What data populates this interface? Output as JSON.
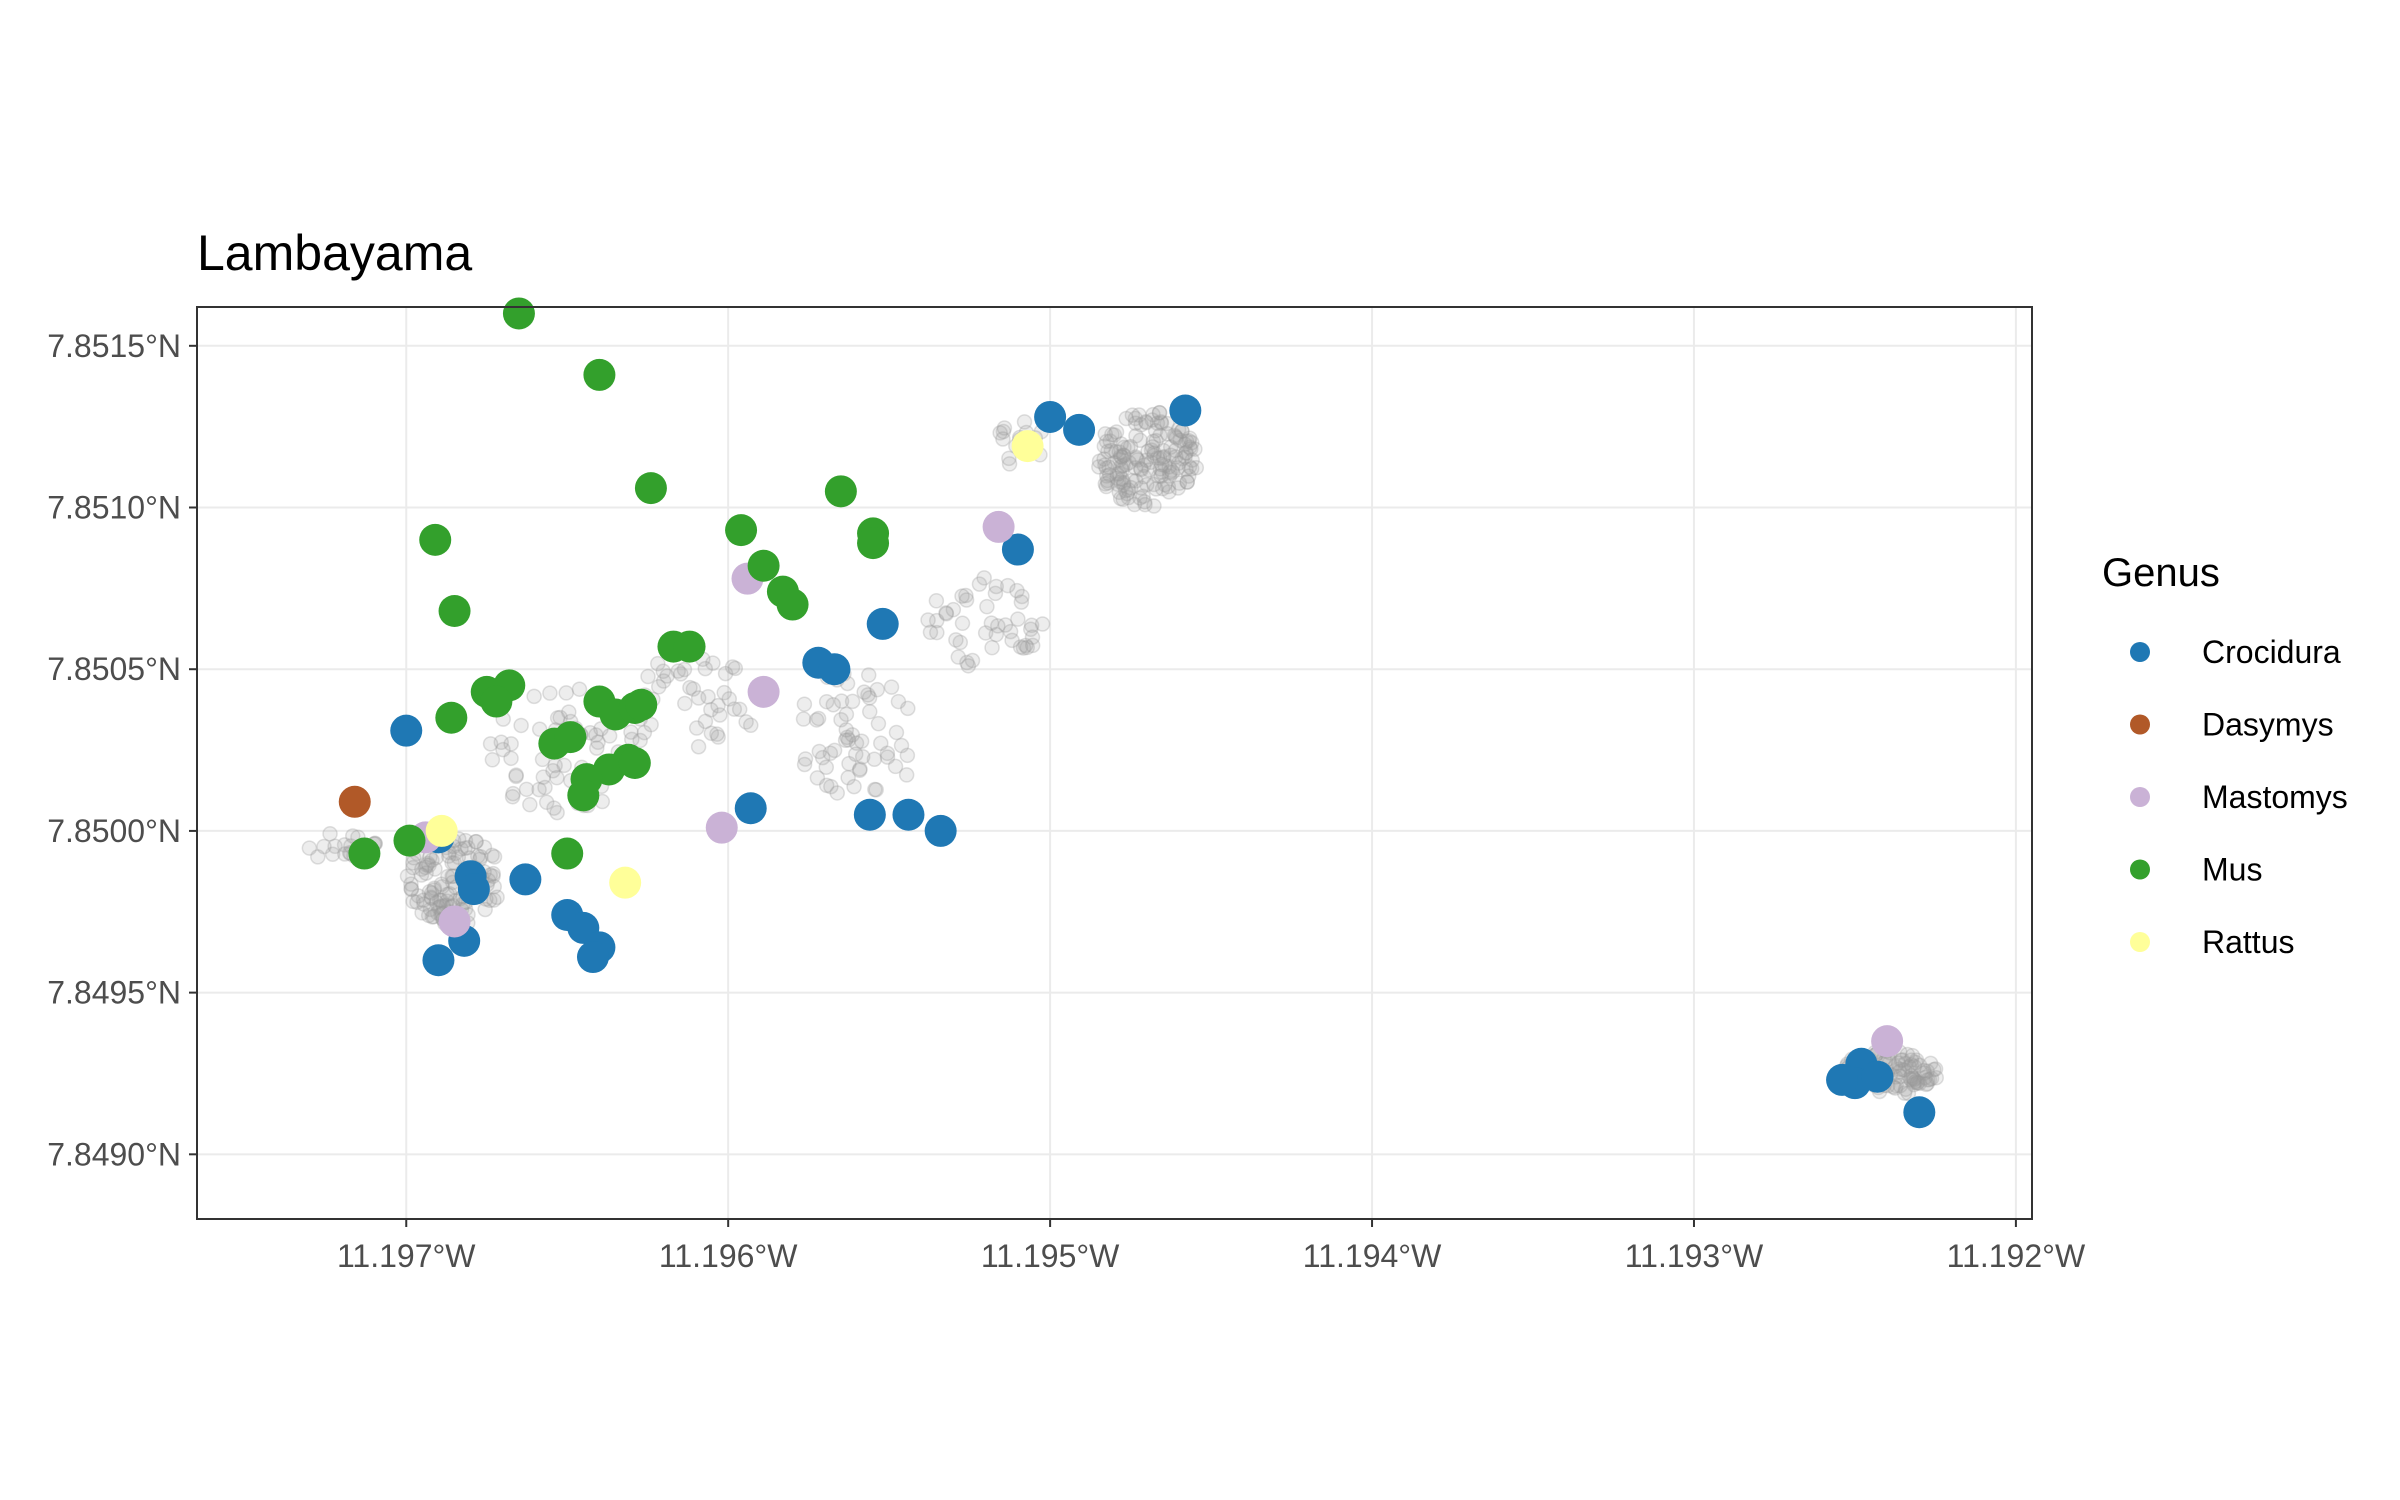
{
  "chart_data": {
    "type": "scatter",
    "title": "Lambayama",
    "xlabel": "",
    "ylabel": "",
    "xlim": [
      -11.19765,
      -11.19195
    ],
    "ylim": [
      7.8488,
      7.85162
    ],
    "x_ticks": [
      {
        "value": -11.197,
        "label": "11.197°W"
      },
      {
        "value": -11.196,
        "label": "11.196°W"
      },
      {
        "value": -11.195,
        "label": "11.195°W"
      },
      {
        "value": -11.194,
        "label": "11.194°W"
      },
      {
        "value": -11.193,
        "label": "11.193°W"
      },
      {
        "value": -11.192,
        "label": "11.192°W"
      }
    ],
    "y_ticks": [
      {
        "value": 7.849,
        "label": "7.8490°N"
      },
      {
        "value": 7.8495,
        "label": "7.8495°N"
      },
      {
        "value": 7.85,
        "label": "7.8500°N"
      },
      {
        "value": 7.8505,
        "label": "7.8505°N"
      },
      {
        "value": 7.851,
        "label": "7.8510°N"
      },
      {
        "value": 7.8515,
        "label": "7.8515°N"
      }
    ],
    "grid": true,
    "legend": {
      "title": "Genus",
      "position": "right"
    },
    "background_points": {
      "color": "#999999",
      "clusters": [
        {
          "center": [
            -11.19685,
            7.84985
          ],
          "spread": [
            0.00015,
            0.00014
          ],
          "count": 120
        },
        {
          "center": [
            -11.1965,
            7.85025
          ],
          "spread": [
            0.00025,
            0.0002
          ],
          "count": 70
        },
        {
          "center": [
            -11.1961,
            7.8504
          ],
          "spread": [
            0.0002,
            0.00015
          ],
          "count": 40
        },
        {
          "center": [
            -11.1956,
            7.8503
          ],
          "spread": [
            0.0002,
            0.0002
          ],
          "count": 60
        },
        {
          "center": [
            -11.1952,
            7.85065
          ],
          "spread": [
            0.00018,
            0.00015
          ],
          "count": 45
        },
        {
          "center": [
            -11.1947,
            7.85115
          ],
          "spread": [
            0.00016,
            0.00015
          ],
          "count": 160
        },
        {
          "center": [
            -11.1924,
            7.84925
          ],
          "spread": [
            0.00016,
            7e-05
          ],
          "count": 110
        },
        {
          "center": [
            -11.1972,
            7.84995
          ],
          "spread": [
            0.00012,
            5e-05
          ],
          "count": 20
        },
        {
          "center": [
            -11.1951,
            7.8512
          ],
          "spread": [
            8e-05,
            0.0001
          ],
          "count": 15
        }
      ]
    },
    "series": [
      {
        "name": "Crocidura",
        "color": "#1F78B4",
        "points": [
          [
            -11.197,
            7.85031
          ],
          [
            -11.1969,
            7.84998
          ],
          [
            -11.1968,
            7.84986
          ],
          [
            -11.19679,
            7.84982
          ],
          [
            -11.19663,
            7.84985
          ],
          [
            -11.1965,
            7.84974
          ],
          [
            -11.19645,
            7.8497
          ],
          [
            -11.1964,
            7.84964
          ],
          [
            -11.19642,
            7.84961
          ],
          [
            -11.1969,
            7.8496
          ],
          [
            -11.19682,
            7.84966
          ],
          [
            -11.19593,
            7.85007
          ],
          [
            -11.19572,
            7.85052
          ],
          [
            -11.19567,
            7.8505
          ],
          [
            -11.19552,
            7.85064
          ],
          [
            -11.19556,
            7.85005
          ],
          [
            -11.19544,
            7.85005
          ],
          [
            -11.19534,
            7.85
          ],
          [
            -11.195,
            7.85128
          ],
          [
            -11.19491,
            7.85124
          ],
          [
            -11.19458,
            7.8513
          ],
          [
            -11.1951,
            7.85087
          ],
          [
            -11.19248,
            7.84928
          ],
          [
            -11.1925,
            7.84922
          ],
          [
            -11.19243,
            7.84924
          ],
          [
            -11.1923,
            7.84913
          ],
          [
            -11.19254,
            7.84923
          ]
        ]
      },
      {
        "name": "Dasymys",
        "color": "#B15928",
        "points": [
          [
            -11.19716,
            7.85009
          ]
        ]
      },
      {
        "name": "Mastomys",
        "color": "#CAB2D6",
        "points": [
          [
            -11.19594,
            7.85078
          ],
          [
            -11.19589,
            7.85043
          ],
          [
            -11.19602,
            7.85001
          ],
          [
            -11.19694,
            7.84998
          ],
          [
            -11.19685,
            7.84972
          ],
          [
            -11.19516,
            7.85094
          ],
          [
            -11.1924,
            7.84935
          ]
        ]
      },
      {
        "name": "Mus",
        "color": "#33A02C",
        "points": [
          [
            -11.19665,
            7.8516
          ],
          [
            -11.1964,
            7.85141
          ],
          [
            -11.19624,
            7.85106
          ],
          [
            -11.19691,
            7.8509
          ],
          [
            -11.19685,
            7.85068
          ],
          [
            -11.19686,
            7.85035
          ],
          [
            -11.19668,
            7.85045
          ],
          [
            -11.19675,
            7.85043
          ],
          [
            -11.19672,
            7.8504
          ],
          [
            -11.1964,
            7.8504
          ],
          [
            -11.19635,
            7.85036
          ],
          [
            -11.19629,
            7.85038
          ],
          [
            -11.19627,
            7.85039
          ],
          [
            -11.19654,
            7.85027
          ],
          [
            -11.19649,
            7.85029
          ],
          [
            -11.19617,
            7.85057
          ],
          [
            -11.19612,
            7.85057
          ],
          [
            -11.19596,
            7.85093
          ],
          [
            -11.19589,
            7.85082
          ],
          [
            -11.19583,
            7.85074
          ],
          [
            -11.1958,
            7.8507
          ],
          [
            -11.19565,
            7.85105
          ],
          [
            -11.19555,
            7.85092
          ],
          [
            -11.19555,
            7.85089
          ],
          [
            -11.19631,
            7.85022
          ],
          [
            -11.19637,
            7.85019
          ],
          [
            -11.19644,
            7.85016
          ],
          [
            -11.19629,
            7.85021
          ],
          [
            -11.1965,
            7.84993
          ],
          [
            -11.19713,
            7.84993
          ],
          [
            -11.19699,
            7.84997
          ],
          [
            -11.19645,
            7.85011
          ]
        ]
      },
      {
        "name": "Rattus",
        "color": "#FFFF99",
        "points": [
          [
            -11.19689,
            7.85
          ],
          [
            -11.19632,
            7.84984
          ],
          [
            -11.19507,
            7.85119
          ]
        ]
      }
    ]
  }
}
